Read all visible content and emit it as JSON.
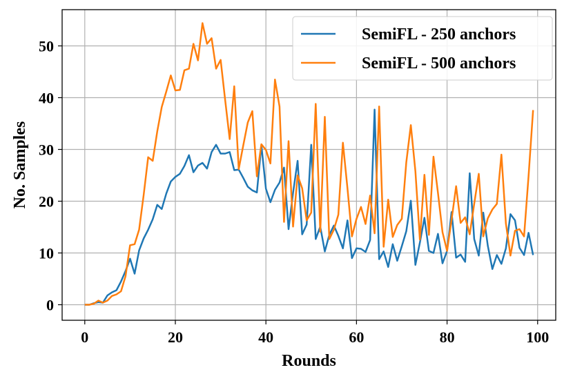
{
  "chart_data": {
    "type": "line",
    "xlabel": "Rounds",
    "ylabel": "No. Samples",
    "xlim": [
      -5,
      104
    ],
    "ylim": [
      -3,
      57
    ],
    "xticks": [
      0,
      20,
      40,
      60,
      80,
      100
    ],
    "yticks": [
      0,
      10,
      20,
      30,
      40,
      50
    ],
    "grid": true,
    "legend_position": "top-right",
    "series": [
      {
        "name": "SemiFL - 250 anchors",
        "color": "#1f77b4",
        "x": [
          0,
          1,
          2,
          3,
          4,
          5,
          6,
          7,
          8,
          9,
          10,
          11,
          12,
          13,
          14,
          15,
          16,
          17,
          18,
          19,
          20,
          21,
          22,
          23,
          24,
          25,
          26,
          27,
          28,
          29,
          30,
          31,
          32,
          33,
          34,
          35,
          36,
          37,
          38,
          39,
          40,
          41,
          42,
          43,
          44,
          45,
          46,
          47,
          48,
          49,
          50,
          51,
          52,
          53,
          54,
          55,
          56,
          57,
          58,
          59,
          60,
          61,
          62,
          63,
          64,
          65,
          66,
          67,
          68,
          69,
          70,
          71,
          72,
          73,
          74,
          75,
          76,
          77,
          78,
          79,
          80,
          81,
          82,
          83,
          84,
          85,
          86,
          87,
          88,
          89,
          90,
          91,
          92,
          93,
          94,
          95,
          96,
          97,
          98,
          99
        ],
        "y": [
          0,
          0,
          0.3,
          0.5,
          0.4,
          1.8,
          2.4,
          2.8,
          4.5,
          6.5,
          8.9,
          6.0,
          10.5,
          12.8,
          14.5,
          16.5,
          19.3,
          18.5,
          21.5,
          23.8,
          24.7,
          25.3,
          26.8,
          28.9,
          25.6,
          26.9,
          27.4,
          26.3,
          29.5,
          30.9,
          29.2,
          29.2,
          29.5,
          26.0,
          26.1,
          24.5,
          22.8,
          22.1,
          21.7,
          30.8,
          22.4,
          19.8,
          22.2,
          23.6,
          26.5,
          14.6,
          21.6,
          27.8,
          13.6,
          15.5,
          30.9,
          12.7,
          15.1,
          10.3,
          13.5,
          15.3,
          13.3,
          10.9,
          16.3,
          9.0,
          10.9,
          10.8,
          10.2,
          12.5,
          37.7,
          8.8,
          10.3,
          7.3,
          11.7,
          8.5,
          11.3,
          14.2,
          20.1,
          7.7,
          12.0,
          16.8,
          10.4,
          10.0,
          13.7,
          8.0,
          10.4,
          17.9,
          9.1,
          9.7,
          8.3,
          25.4,
          12.7,
          9.5,
          17.8,
          11.4,
          6.9,
          9.6,
          7.9,
          10.9,
          17.5,
          16.3,
          11.0,
          9.6,
          13.9,
          9.6
        ]
      },
      {
        "name": "SemiFL - 500 anchors",
        "color": "#ff7f0e",
        "x": [
          0,
          1,
          2,
          3,
          4,
          5,
          6,
          7,
          8,
          9,
          10,
          11,
          12,
          13,
          14,
          15,
          16,
          17,
          18,
          19,
          20,
          21,
          22,
          23,
          24,
          25,
          26,
          27,
          28,
          29,
          30,
          31,
          32,
          33,
          34,
          35,
          36,
          37,
          38,
          39,
          40,
          41,
          42,
          43,
          44,
          45,
          46,
          47,
          48,
          49,
          50,
          51,
          52,
          53,
          54,
          55,
          56,
          57,
          58,
          59,
          60,
          61,
          62,
          63,
          64,
          65,
          66,
          67,
          68,
          69,
          70,
          71,
          72,
          73,
          74,
          75,
          76,
          77,
          78,
          79,
          80,
          81,
          82,
          83,
          84,
          85,
          86,
          87,
          88,
          89,
          90,
          91,
          92,
          93,
          94,
          95,
          96,
          97,
          98,
          99
        ],
        "y": [
          0,
          0,
          0.2,
          0.8,
          0.4,
          0.8,
          1.7,
          2.0,
          2.6,
          5.5,
          11.5,
          11.7,
          14.5,
          21.2,
          28.5,
          27.8,
          33.5,
          38.2,
          41.2,
          44.3,
          41.4,
          41.5,
          45.3,
          45.6,
          50.4,
          47.2,
          54.4,
          50.4,
          51.5,
          45.6,
          47.3,
          39.6,
          32.0,
          42.2,
          26.2,
          30.8,
          35.2,
          37.4,
          24.8,
          31.0,
          29.9,
          27.3,
          43.5,
          38.3,
          16.0,
          31.6,
          15.1,
          25.0,
          22.5,
          16.3,
          17.8,
          38.8,
          14.1,
          36.3,
          12.7,
          14.5,
          17.4,
          31.3,
          22.5,
          13.2,
          16.6,
          18.9,
          15.6,
          21.1,
          13.8,
          38.3,
          11.2,
          20.3,
          13.1,
          15.4,
          16.6,
          27.5,
          34.7,
          25.8,
          12.6,
          25.1,
          13.5,
          28.6,
          21.6,
          14.0,
          10.4,
          16.4,
          22.9,
          15.8,
          16.9,
          13.6,
          19.5,
          25.3,
          13.2,
          16.7,
          18.4,
          19.5,
          29.0,
          15.7,
          9.5,
          14.3,
          14.6,
          13.2,
          24.8,
          37.6
        ]
      }
    ]
  }
}
